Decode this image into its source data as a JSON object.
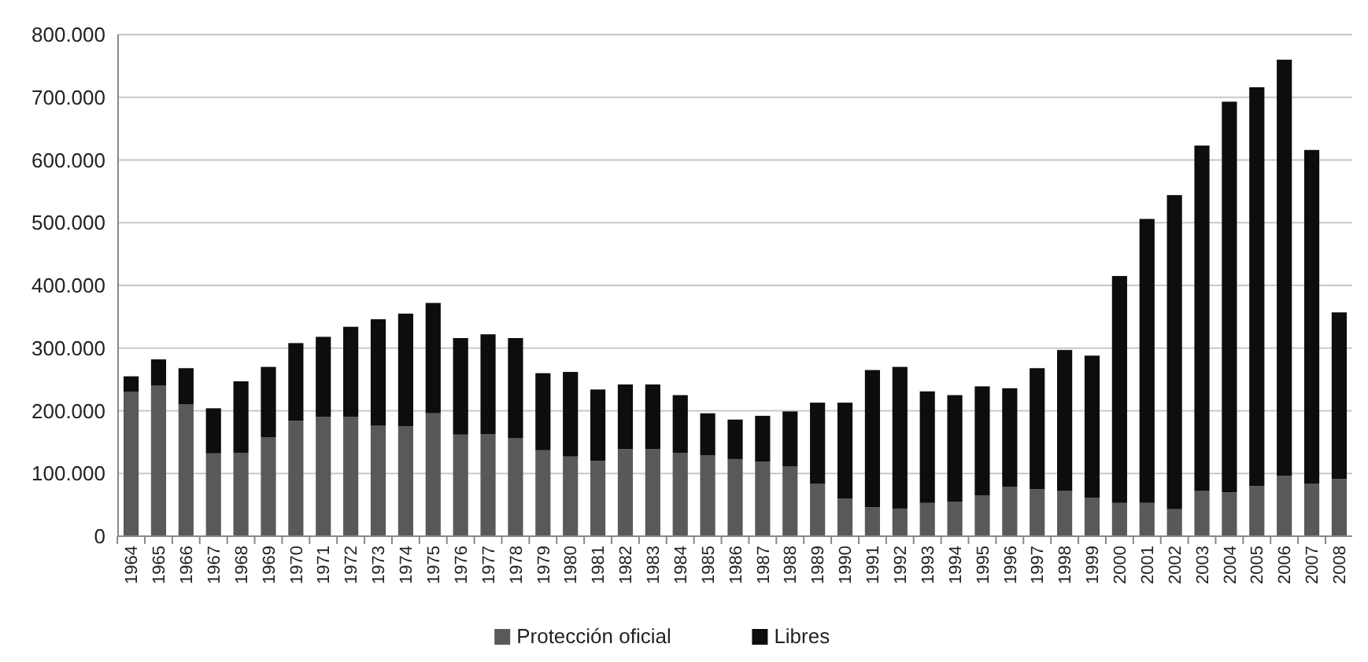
{
  "chart_data": {
    "type": "bar",
    "stacked": true,
    "categories": [
      "1964",
      "1965",
      "1966",
      "1967",
      "1968",
      "1969",
      "1970",
      "1971",
      "1972",
      "1973",
      "1974",
      "1975",
      "1976",
      "1977",
      "1978",
      "1979",
      "1980",
      "1981",
      "1982",
      "1983",
      "1984",
      "1985",
      "1986",
      "1987",
      "1988",
      "1989",
      "1990",
      "1991",
      "1992",
      "1993",
      "1994",
      "1995",
      "1996",
      "1997",
      "1998",
      "1999",
      "2000",
      "2001",
      "2002",
      "2003",
      "2004",
      "2005",
      "2006",
      "2007",
      "2008"
    ],
    "series": [
      {
        "name": "Protección oficial",
        "color": "#595959",
        "values": [
          230000,
          240000,
          210000,
          132000,
          133000,
          158000,
          184000,
          190000,
          190000,
          176000,
          175000,
          196000,
          162000,
          163000,
          156000,
          137000,
          127000,
          120000,
          139000,
          139000,
          133000,
          129000,
          123000,
          119000,
          111000,
          84000,
          60000,
          46000,
          44000,
          53000,
          55000,
          65000,
          79000,
          75000,
          72000,
          61000,
          53000,
          53000,
          43000,
          72000,
          70000,
          80000,
          96000,
          84000,
          91000
        ]
      },
      {
        "name": "Libres",
        "color": "#0d0d0d",
        "values": [
          25000,
          42000,
          58000,
          72000,
          114000,
          112000,
          124000,
          128000,
          144000,
          170000,
          180000,
          176000,
          154000,
          159000,
          160000,
          123000,
          135000,
          114000,
          103000,
          103000,
          92000,
          67000,
          63000,
          73000,
          88000,
          129000,
          153000,
          219000,
          226000,
          178000,
          170000,
          174000,
          157000,
          193000,
          225000,
          227000,
          362000,
          453000,
          501000,
          551000,
          623000,
          636000,
          664000,
          532000,
          266000
        ]
      }
    ],
    "ylim": [
      0,
      800000
    ],
    "yticks": [
      {
        "value": 0,
        "label": "0"
      },
      {
        "value": 100000,
        "label": "100.000"
      },
      {
        "value": 200000,
        "label": "200.000"
      },
      {
        "value": 300000,
        "label": "300.000"
      },
      {
        "value": 400000,
        "label": "400.000"
      },
      {
        "value": 500000,
        "label": "500.000"
      },
      {
        "value": 600000,
        "label": "600.000"
      },
      {
        "value": 700000,
        "label": "700.000"
      },
      {
        "value": 800000,
        "label": "800.000"
      }
    ],
    "grid": "y",
    "legend": "bottom"
  }
}
